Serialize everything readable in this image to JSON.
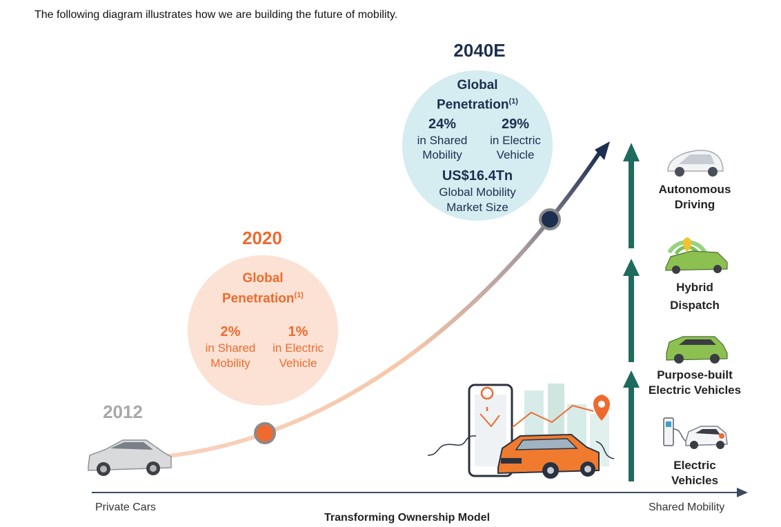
{
  "intro": "The following diagram illustrates how we are building the future of mobility.",
  "timeline": {
    "year_2012": "2012",
    "year_2020": "2020",
    "year_2040": "2040E"
  },
  "bubble_2020": {
    "title_line1": "Global",
    "title_line2": "Penetration",
    "footnote": "(1)",
    "stat1_value": "2%",
    "stat1_line1": "in Shared",
    "stat1_line2": "Mobility",
    "stat2_value": "1%",
    "stat2_line1": "in Electric",
    "stat2_line2": "Vehicle"
  },
  "bubble_2040": {
    "title_line1": "Global",
    "title_line2": "Penetration",
    "footnote": "(1)",
    "stat1_value": "24%",
    "stat1_line1": "in Shared",
    "stat1_line2": "Mobility",
    "stat2_value": "29%",
    "stat2_line1": "in Electric",
    "stat2_line2": "Vehicle",
    "market_value": "US$16.4Tn",
    "market_line1": "Global Mobility",
    "market_line2": "Market Size"
  },
  "stages": [
    {
      "line1": "Autonomous",
      "line2": "Driving"
    },
    {
      "line1": "Hybrid",
      "line2": "Dispatch"
    },
    {
      "line1": "Purpose-built",
      "line2": "Electric Vehicles"
    },
    {
      "line1": "Electric",
      "line2": "Vehicles"
    }
  ],
  "axis": {
    "left": "Private Cars",
    "right": "Shared Mobility",
    "title": "Transforming Ownership Model"
  },
  "colors": {
    "orange": "#ef6a2f",
    "navy": "#1c2f4f",
    "teal": "#1f6b5e",
    "gray": "#a8a8a8"
  }
}
